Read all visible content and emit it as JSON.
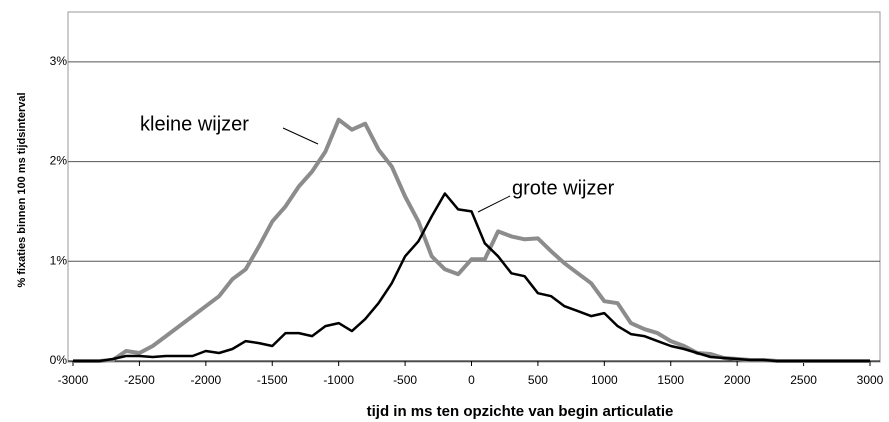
{
  "chart_data": {
    "type": "line",
    "x_label": "tijd in ms ten opzichte van begin articulatie",
    "y_label": "% fixaties binnen 100 ms tijdsinterval",
    "x": [
      -3000,
      -2900,
      -2800,
      -2700,
      -2600,
      -2500,
      -2400,
      -2300,
      -2200,
      -2100,
      -2000,
      -1900,
      -1800,
      -1700,
      -1600,
      -1500,
      -1400,
      -1300,
      -1200,
      -1100,
      -1000,
      -900,
      -800,
      -700,
      -600,
      -500,
      -400,
      -300,
      -200,
      -100,
      0,
      100,
      200,
      300,
      400,
      500,
      600,
      700,
      800,
      900,
      1000,
      1100,
      1200,
      1300,
      1400,
      1500,
      1600,
      1700,
      1800,
      1900,
      2000,
      2100,
      2200,
      2300,
      2400,
      2500,
      2600,
      2700,
      2800,
      2900,
      3000
    ],
    "series": [
      {
        "name": "kleine wijzer",
        "color": "#8c8c8c",
        "values": [
          0,
          0,
          0,
          0.01,
          0.1,
          0.08,
          0.15,
          0.25,
          0.35,
          0.45,
          0.55,
          0.65,
          0.82,
          0.92,
          1.15,
          1.4,
          1.55,
          1.75,
          1.9,
          2.1,
          2.42,
          2.32,
          2.38,
          2.12,
          1.95,
          1.65,
          1.4,
          1.05,
          0.92,
          0.87,
          1.02,
          1.02,
          1.3,
          1.25,
          1.22,
          1.23,
          1.1,
          0.98,
          0.88,
          0.78,
          0.6,
          0.58,
          0.38,
          0.32,
          0.28,
          0.2,
          0.15,
          0.08,
          0.07,
          0.03,
          0.02,
          0.01,
          0.01,
          0,
          0,
          0,
          0,
          0,
          0,
          0,
          0
        ]
      },
      {
        "name": "grote wijzer",
        "color": "#000000",
        "values": [
          0,
          0,
          0,
          0.02,
          0.05,
          0.05,
          0.04,
          0.05,
          0.05,
          0.05,
          0.1,
          0.08,
          0.12,
          0.2,
          0.18,
          0.15,
          0.28,
          0.28,
          0.25,
          0.35,
          0.38,
          0.3,
          0.42,
          0.58,
          0.78,
          1.05,
          1.2,
          1.45,
          1.68,
          1.52,
          1.5,
          1.18,
          1.05,
          0.88,
          0.85,
          0.68,
          0.65,
          0.55,
          0.5,
          0.45,
          0.48,
          0.35,
          0.27,
          0.25,
          0.2,
          0.15,
          0.12,
          0.08,
          0.04,
          0.03,
          0.02,
          0.01,
          0.01,
          0,
          0,
          0,
          0,
          0,
          0,
          0,
          0
        ]
      }
    ],
    "xlim": [
      -3000,
      3000
    ],
    "xticks": [
      -3000,
      -2500,
      -2000,
      -1500,
      -1000,
      -500,
      0,
      500,
      1000,
      1500,
      2000,
      2500,
      3000
    ],
    "ylim": [
      0,
      3.5
    ],
    "yticks": [
      {
        "value": 0,
        "label": "0%"
      },
      {
        "value": 1,
        "label": "1%"
      },
      {
        "value": 2,
        "label": "2%"
      },
      {
        "value": 3,
        "label": "3%"
      }
    ],
    "grid": true
  }
}
